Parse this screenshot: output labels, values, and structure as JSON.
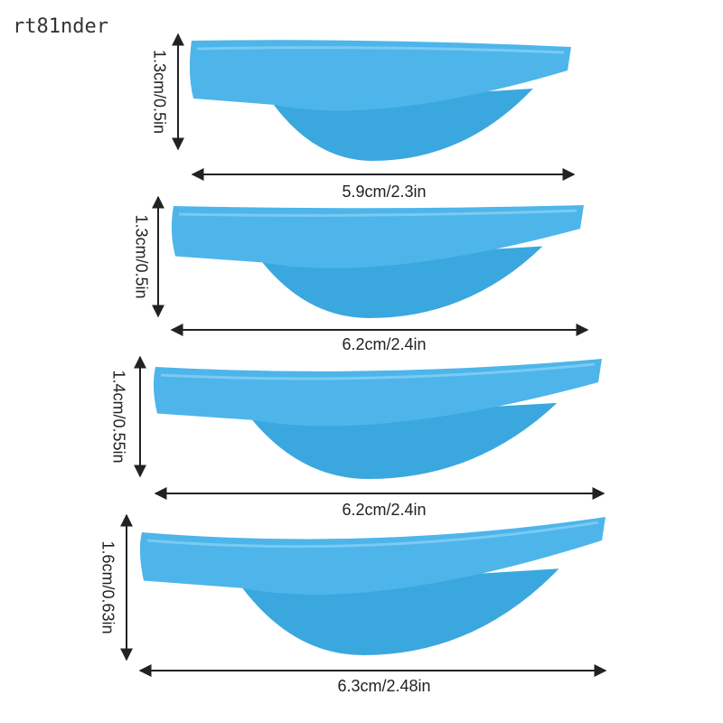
{
  "watermark": "rt81nder",
  "items": [
    {
      "width_label": "5.9cm/2.3in",
      "height_label": "1.3cm/0.5in"
    },
    {
      "width_label": "6.2cm/2.4in",
      "height_label": "1.3cm/0.5in"
    },
    {
      "width_label": "6.2cm/2.4in",
      "height_label": "1.4cm/0.55in"
    },
    {
      "width_label": "6.3cm/2.48in",
      "height_label": "1.6cm/0.63in"
    }
  ]
}
